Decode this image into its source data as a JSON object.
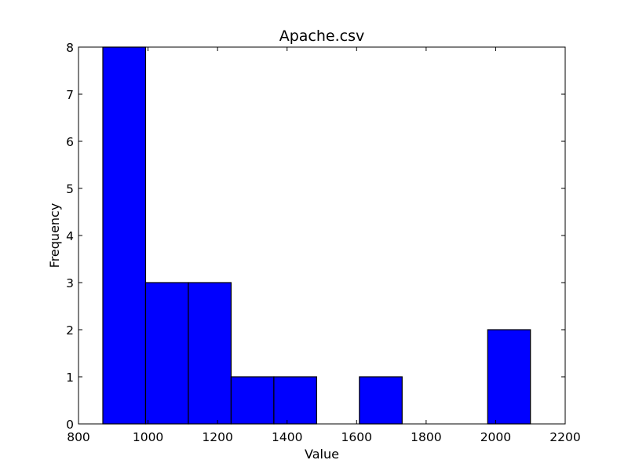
{
  "chart_data": {
    "type": "bar",
    "title": "Apache.csv",
    "xlabel": "Value",
    "ylabel": "Frequency",
    "xlim": [
      800,
      2200
    ],
    "ylim": [
      0,
      8
    ],
    "xticks": [
      800,
      1000,
      1200,
      1400,
      1600,
      1800,
      2000,
      2200
    ],
    "yticks": [
      0,
      1,
      2,
      3,
      4,
      5,
      6,
      7,
      8
    ],
    "bin_edges": [
      870,
      993,
      1116,
      1239,
      1362,
      1485,
      1608,
      1731,
      1854,
      1977,
      2100
    ],
    "values": [
      8,
      3,
      3,
      1,
      1,
      0,
      1,
      0,
      0,
      2
    ],
    "bar_color": "#0000ff",
    "edge_color": "#000000",
    "grid": false
  }
}
